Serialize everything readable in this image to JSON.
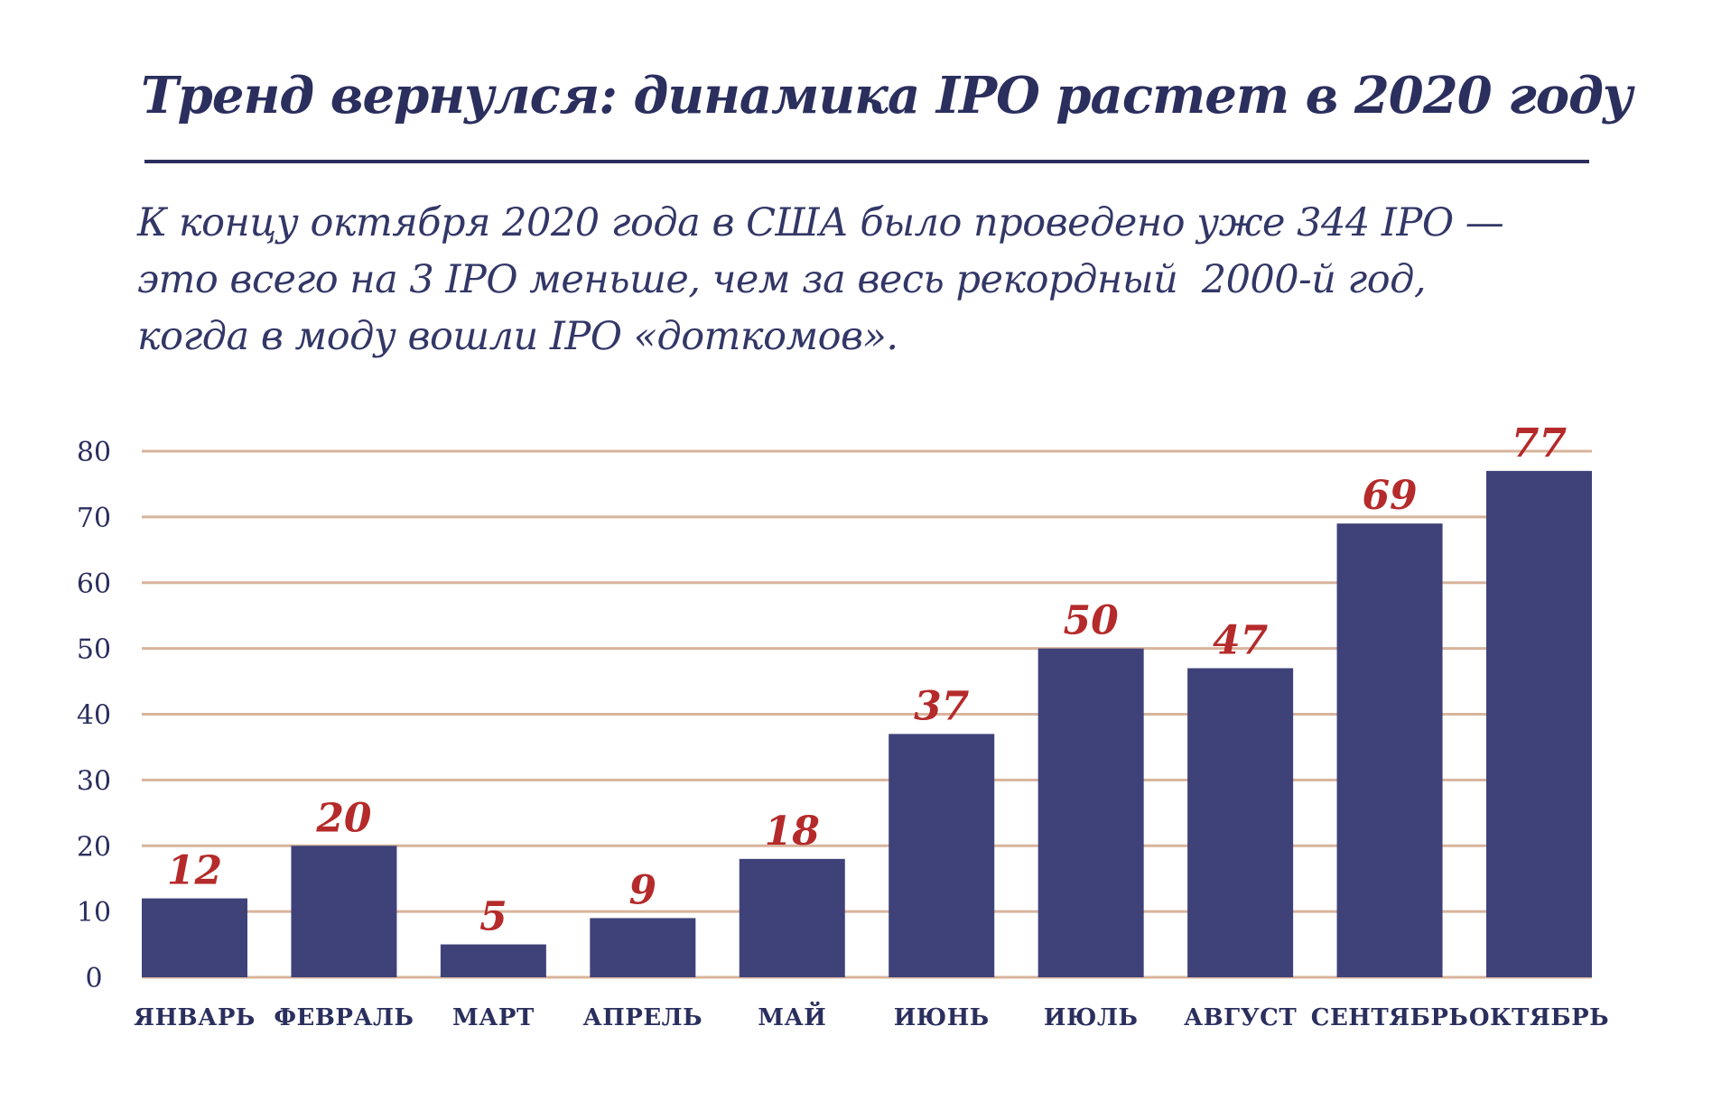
{
  "chart_data": {
    "type": "bar",
    "title": "Тренд вернулся: динамика IPO растет в 2020 году",
    "subtitle_lines": [
      "К концу октября 2020 года в США было проведено уже 344 IPO —",
      "это всего на 3 IPO меньше, чем за весь рекордный  2000-й год,",
      "когда в моду вошли IPO «доткомов»."
    ],
    "categories": [
      "ЯНВАРЬ",
      "ФЕВРАЛЬ",
      "МАРТ",
      "АПРЕЛЬ",
      "МАЙ",
      "ИЮНЬ",
      "ИЮЛЬ",
      "АВГУСТ",
      "СЕНТЯБРЬ",
      "ОКТЯБРЬ"
    ],
    "values": [
      12,
      20,
      5,
      9,
      18,
      37,
      50,
      47,
      69,
      77
    ],
    "ylim": [
      0,
      80
    ],
    "yticks": [
      0,
      10,
      20,
      30,
      40,
      50,
      60,
      70,
      80
    ],
    "xlabel": "",
    "ylabel": "",
    "grid": true,
    "colors": {
      "bar": "#3f4279",
      "value_label": "#b52a2a",
      "grid": "#d8b49c",
      "text": "#2b2f5e"
    }
  }
}
